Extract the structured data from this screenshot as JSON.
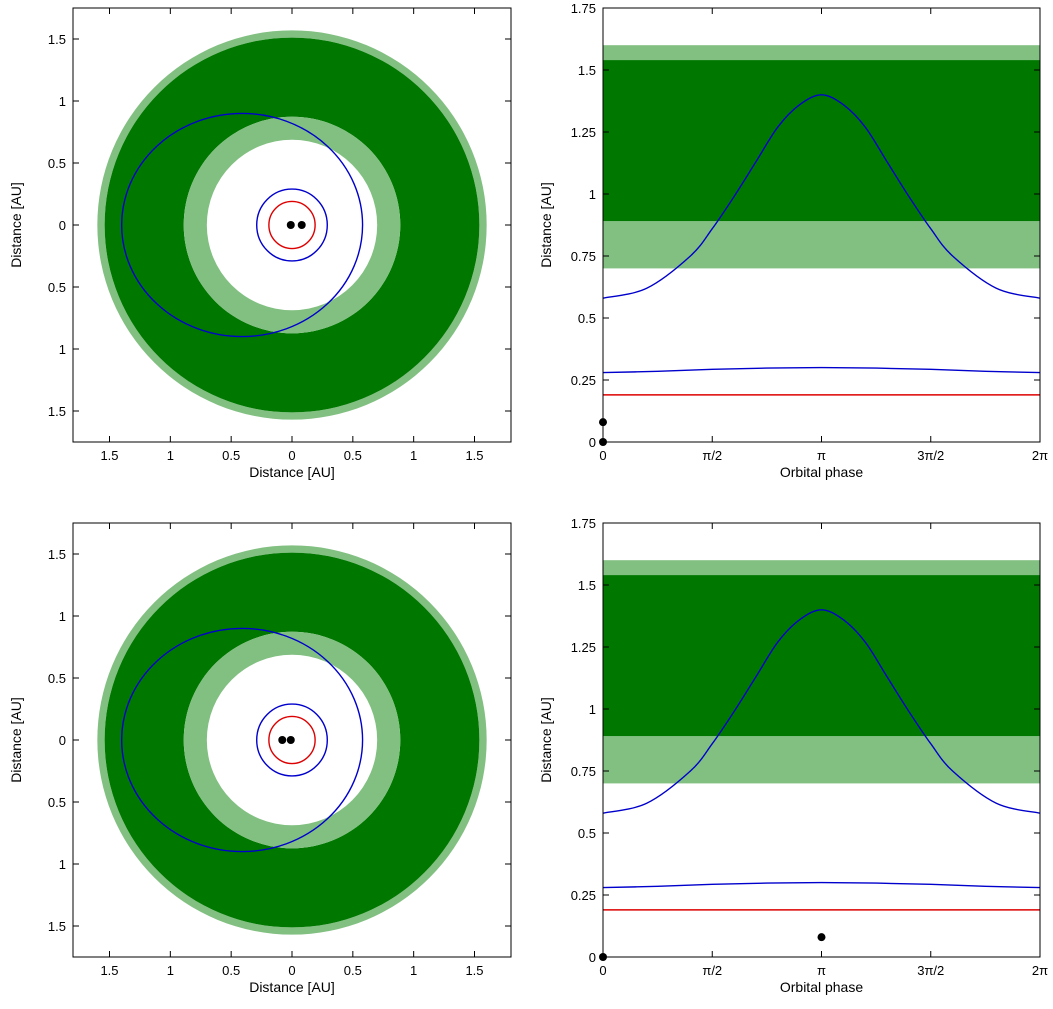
{
  "colors": {
    "band_dark": "#007800",
    "band_light": "#82c082",
    "orbit_blue": "#0000cc",
    "orbit_red": "#dd0000",
    "star": "#000000"
  },
  "chart_data": [
    {
      "type": "scatter",
      "panel": "top-left",
      "xlabel": "Distance [AU]",
      "ylabel": "Distance [AU]",
      "xlim": [
        -1.8,
        1.8
      ],
      "ylim": [
        -1.75,
        1.75
      ],
      "xticks": [
        -1.5,
        -1,
        -0.5,
        0,
        0.5,
        1,
        1.5
      ],
      "xtick_labels": [
        "1.5",
        "1",
        "0.5",
        "0",
        "0.5",
        "1",
        "1.5"
      ],
      "yticks": [
        -1.5,
        -1,
        -0.5,
        0,
        0.5,
        1,
        1.5
      ],
      "ytick_labels": [
        "1.5",
        "1",
        "0.5",
        "0",
        "0.5",
        "1",
        "1.5"
      ],
      "bands": [
        {
          "shade": "light",
          "r_inner": 1.54,
          "r_outer": 1.6
        },
        {
          "shade": "dark",
          "r_inner": 0.89,
          "r_outer": 1.54
        },
        {
          "shade": "light",
          "r_inner": 0.7,
          "r_outer": 0.89
        }
      ],
      "orbits": [
        {
          "color": "blue",
          "cx": -0.41,
          "cy": 0,
          "rx": 0.99,
          "ry": 0.9
        },
        {
          "color": "blue",
          "cx": 0,
          "cy": 0,
          "rx": 0.29,
          "ry": 0.29
        },
        {
          "color": "red",
          "cx": 0,
          "cy": 0,
          "rx": 0.19,
          "ry": 0.19
        }
      ],
      "stars": [
        {
          "x": -0.01,
          "y": 0
        },
        {
          "x": 0.08,
          "y": 0
        }
      ]
    },
    {
      "type": "line",
      "panel": "top-right",
      "xlabel": "Orbital phase",
      "ylabel": "Distance [AU]",
      "xlim": [
        0,
        6.2832
      ],
      "ylim": [
        0,
        1.75
      ],
      "xticks": [
        0,
        1.5708,
        3.1416,
        4.7124,
        6.2832
      ],
      "xtick_labels": [
        "0",
        "π/2",
        "π",
        "3π/2",
        "2π"
      ],
      "yticks": [
        0,
        0.25,
        0.5,
        0.75,
        1,
        1.25,
        1.5,
        1.75
      ],
      "ytick_labels": [
        "0",
        "0.25",
        "0.5",
        "0.75",
        "1",
        "1.25",
        "1.5",
        "1.75"
      ],
      "bands": [
        {
          "shade": "light",
          "y_low": 1.54,
          "y_high": 1.6
        },
        {
          "shade": "dark",
          "y_low": 0.89,
          "y_high": 1.54
        },
        {
          "shade": "light",
          "y_low": 0.7,
          "y_high": 0.89
        }
      ],
      "series": [
        {
          "color": "blue",
          "x": [
            0,
            0.6283,
            1.2566,
            1.5708,
            1.885,
            2.1991,
            2.5133,
            2.8274,
            3.1416,
            3.4558,
            3.7699,
            4.0841,
            4.3982,
            4.7124,
            5.0265,
            5.6549,
            6.2832
          ],
          "y": [
            0.58,
            0.62,
            0.75,
            0.86,
            0.99,
            1.13,
            1.27,
            1.36,
            1.4,
            1.36,
            1.27,
            1.13,
            0.99,
            0.86,
            0.75,
            0.62,
            0.58
          ]
        },
        {
          "color": "blue",
          "x": [
            0,
            0.7854,
            1.5708,
            2.3562,
            3.1416,
            3.927,
            4.7124,
            5.4978,
            6.2832
          ],
          "y": [
            0.28,
            0.285,
            0.293,
            0.298,
            0.3,
            0.298,
            0.293,
            0.285,
            0.28
          ]
        },
        {
          "color": "red",
          "x": [
            0,
            6.2832
          ],
          "y": [
            0.19,
            0.19
          ]
        }
      ],
      "stars": [
        {
          "x": 0,
          "y": 0.08
        },
        {
          "x": 0,
          "y": 0
        }
      ]
    },
    {
      "type": "scatter",
      "panel": "bottom-left",
      "xlabel": "Distance [AU]",
      "ylabel": "Distance [AU]",
      "xlim": [
        -1.8,
        1.8
      ],
      "ylim": [
        -1.75,
        1.75
      ],
      "xticks": [
        -1.5,
        -1,
        -0.5,
        0,
        0.5,
        1,
        1.5
      ],
      "xtick_labels": [
        "1.5",
        "1",
        "0.5",
        "0",
        "0.5",
        "1",
        "1.5"
      ],
      "yticks": [
        -1.5,
        -1,
        -0.5,
        0,
        0.5,
        1,
        1.5
      ],
      "ytick_labels": [
        "1.5",
        "1",
        "0.5",
        "0",
        "0.5",
        "1",
        "1.5"
      ],
      "bands": [
        {
          "shade": "light",
          "r_inner": 1.54,
          "r_outer": 1.6
        },
        {
          "shade": "dark",
          "r_inner": 0.89,
          "r_outer": 1.54
        },
        {
          "shade": "light",
          "r_inner": 0.7,
          "r_outer": 0.89
        }
      ],
      "orbits": [
        {
          "color": "blue",
          "cx": -0.41,
          "cy": 0,
          "rx": 0.99,
          "ry": 0.9
        },
        {
          "color": "blue",
          "cx": 0,
          "cy": 0,
          "rx": 0.29,
          "ry": 0.29
        },
        {
          "color": "red",
          "cx": 0,
          "cy": 0,
          "rx": 0.19,
          "ry": 0.19
        }
      ],
      "stars": [
        {
          "x": -0.08,
          "y": 0
        },
        {
          "x": -0.01,
          "y": 0
        }
      ]
    },
    {
      "type": "line",
      "panel": "bottom-right",
      "xlabel": "Orbital phase",
      "ylabel": "Distance [AU]",
      "xlim": [
        0,
        6.2832
      ],
      "ylim": [
        0,
        1.75
      ],
      "xticks": [
        0,
        1.5708,
        3.1416,
        4.7124,
        6.2832
      ],
      "xtick_labels": [
        "0",
        "π/2",
        "π",
        "3π/2",
        "2π"
      ],
      "yticks": [
        0,
        0.25,
        0.5,
        0.75,
        1,
        1.25,
        1.5,
        1.75
      ],
      "ytick_labels": [
        "0",
        "0.25",
        "0.5",
        "0.75",
        "1",
        "1.25",
        "1.5",
        "1.75"
      ],
      "bands": [
        {
          "shade": "light",
          "y_low": 1.54,
          "y_high": 1.6
        },
        {
          "shade": "dark",
          "y_low": 0.89,
          "y_high": 1.54
        },
        {
          "shade": "light",
          "y_low": 0.7,
          "y_high": 0.89
        }
      ],
      "series": [
        {
          "color": "blue",
          "x": [
            0,
            0.6283,
            1.2566,
            1.5708,
            1.885,
            2.1991,
            2.5133,
            2.8274,
            3.1416,
            3.4558,
            3.7699,
            4.0841,
            4.3982,
            4.7124,
            5.0265,
            5.6549,
            6.2832
          ],
          "y": [
            0.58,
            0.62,
            0.75,
            0.86,
            0.99,
            1.13,
            1.27,
            1.36,
            1.4,
            1.36,
            1.27,
            1.13,
            0.99,
            0.86,
            0.75,
            0.62,
            0.58
          ]
        },
        {
          "color": "blue",
          "x": [
            0,
            0.7854,
            1.5708,
            2.3562,
            3.1416,
            3.927,
            4.7124,
            5.4978,
            6.2832
          ],
          "y": [
            0.28,
            0.285,
            0.293,
            0.298,
            0.3,
            0.298,
            0.293,
            0.285,
            0.28
          ]
        },
        {
          "color": "red",
          "x": [
            0,
            6.2832
          ],
          "y": [
            0.19,
            0.19
          ]
        }
      ],
      "stars": [
        {
          "x": 3.1416,
          "y": 0.08
        },
        {
          "x": 0,
          "y": 0
        }
      ]
    }
  ]
}
